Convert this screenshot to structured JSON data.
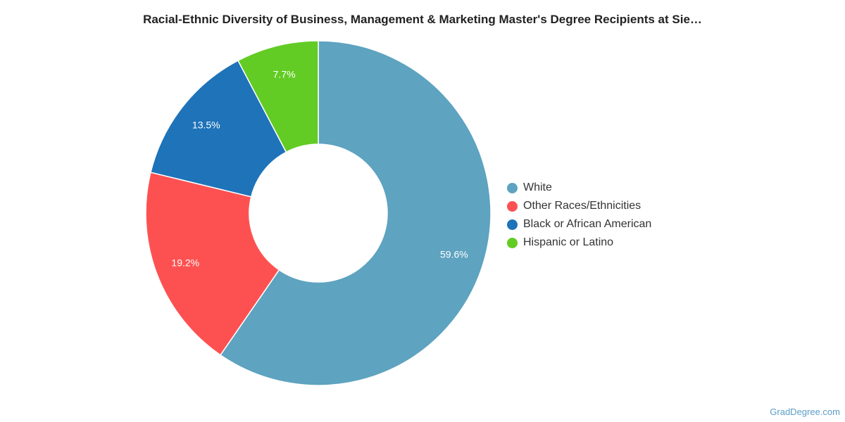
{
  "chart_data": {
    "type": "pie",
    "variant": "donut",
    "title": "Racial-Ethnic Diversity of Business, Management & Marketing Master's Degree Recipients at Sie…",
    "slices": [
      {
        "label": "White",
        "value": 59.6,
        "display": "59.6%",
        "color": "#5ea3c0"
      },
      {
        "label": "Other Races/Ethnicities",
        "value": 19.2,
        "display": "19.2%",
        "color": "#fd5151"
      },
      {
        "label": "Black or African American",
        "value": 13.5,
        "display": "13.5%",
        "color": "#1e73b9"
      },
      {
        "label": "Hispanic or Latino",
        "value": 7.7,
        "display": "7.7%",
        "color": "#62cc24"
      }
    ],
    "legend_position": "right"
  },
  "watermark": "GradDegree.com"
}
